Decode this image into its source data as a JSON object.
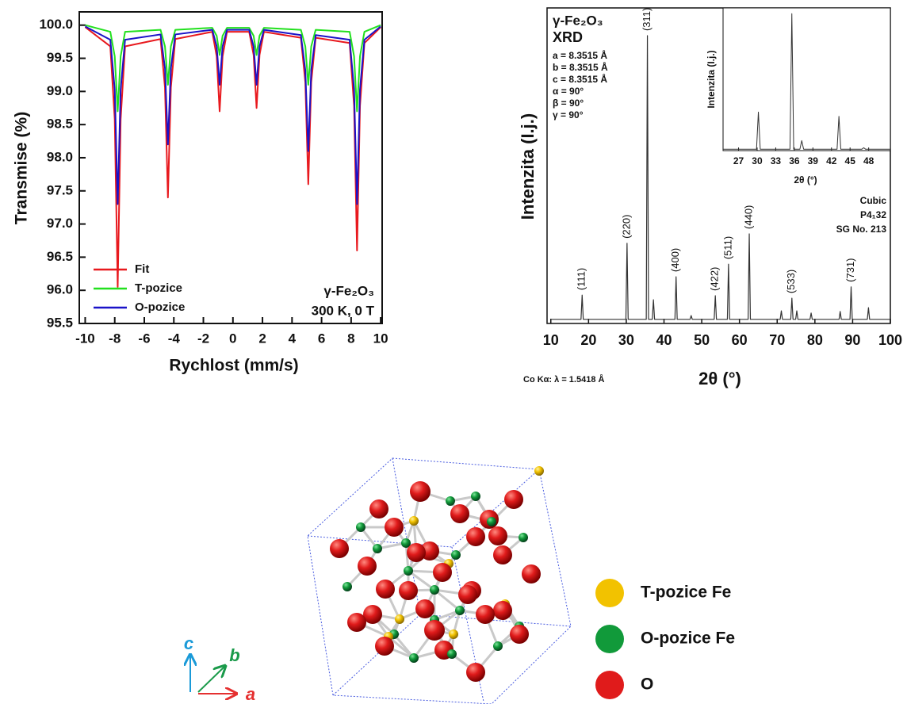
{
  "chart_data": [
    {
      "type": "line",
      "x_label": "Rychlost (mm/s)",
      "y_label": "Transmise (%)",
      "xlim": [
        -10.4,
        10.1
      ],
      "ylim": [
        95.5,
        100.2
      ],
      "xticks": [
        -10,
        -8,
        -6,
        -4,
        -2,
        0,
        2,
        4,
        6,
        8,
        10
      ],
      "yticks": [
        95.5,
        {
          "value": 96,
          "label": "96.0"
        },
        96.5,
        {
          "value": 97,
          "label": "97.0"
        },
        97.5,
        {
          "value": 98,
          "label": "98.0"
        },
        98.5,
        {
          "value": 99,
          "label": "99.0"
        },
        99.5,
        {
          "value": 100,
          "label": "100.0"
        }
      ],
      "x": [
        -10,
        -8.3,
        -8.0,
        -7.8,
        -7.6,
        -7.3,
        -4.9,
        -4.6,
        -4.4,
        -4.2,
        -3.9,
        -1.4,
        -1.1,
        -0.9,
        -0.7,
        -0.4,
        1.1,
        1.4,
        1.6,
        1.8,
        2.1,
        4.6,
        4.9,
        5.1,
        5.3,
        5.6,
        7.9,
        8.2,
        8.4,
        8.6,
        8.9,
        10
      ],
      "series": [
        {
          "name": "Fit",
          "color": "#e8191e",
          "values": [
            99.97,
            99.68,
            98.58,
            96.05,
            98.58,
            99.68,
            99.79,
            99.06,
            97.4,
            99.06,
            99.79,
            99.9,
            99.53,
            98.7,
            99.53,
            99.9,
            99.9,
            99.55,
            98.75,
            99.55,
            99.9,
            99.81,
            99.14,
            97.6,
            99.14,
            99.81,
            99.73,
            98.78,
            96.6,
            98.78,
            99.73,
            99.97
          ]
        },
        {
          "name": "T-pozice",
          "color": "#22e01e",
          "values": [
            100,
            99.9,
            99.53,
            98.7,
            99.53,
            99.9,
            99.93,
            99.68,
            99.1,
            99.68,
            99.93,
            99.96,
            99.84,
            99.55,
            99.84,
            99.96,
            99.96,
            99.84,
            99.55,
            99.84,
            99.96,
            99.93,
            99.68,
            99.1,
            99.68,
            99.93,
            99.9,
            99.53,
            98.7,
            99.53,
            99.9,
            100
          ]
        },
        {
          "name": "O-pozice",
          "color": "#1a12c8",
          "values": [
            99.98,
            99.78,
            99.03,
            97.3,
            99.03,
            99.78,
            99.86,
            99.35,
            98.2,
            99.35,
            99.86,
            99.93,
            99.68,
            99.1,
            99.68,
            99.93,
            99.93,
            99.68,
            99.1,
            99.68,
            99.93,
            99.85,
            99.32,
            98.1,
            99.32,
            99.85,
            99.78,
            99.03,
            97.3,
            99.03,
            99.78,
            99.98
          ]
        }
      ],
      "legend": "lower left",
      "annotations": [
        "γ-Fe₂O₃",
        "300 K, 0 T"
      ]
    },
    {
      "type": "line",
      "x_label": "2θ (°)",
      "y_label": "Intenzita (I.j.)",
      "xlim": [
        9,
        100
      ],
      "ylim": [
        0,
        100
      ],
      "xticks": [
        10,
        20,
        30,
        40,
        50,
        60,
        70,
        80,
        90,
        100
      ],
      "x": [
        10,
        18.0,
        18.3,
        18.6,
        29.9,
        30.2,
        30.5,
        35.3,
        35.6,
        35.9,
        36.9,
        37.2,
        37.5,
        42.9,
        43.2,
        43.5,
        46.9,
        47.2,
        47.5,
        53.3,
        53.6,
        53.9,
        56.8,
        57.1,
        57.4,
        62.3,
        62.6,
        62.9,
        70.8,
        71.1,
        71.4,
        73.6,
        73.9,
        74.2,
        74.9,
        75.2,
        75.5,
        78.7,
        79.0,
        79.3,
        86.4,
        86.7,
        87.0,
        89.3,
        89.6,
        89.9,
        93.9,
        94.2,
        94.5,
        100
      ],
      "series": [
        {
          "color": "#333333",
          "values": [
            1.3,
            1.3,
            9,
            1.3,
            1.3,
            25.4,
            1.3,
            1.3,
            91.2,
            1.3,
            1.3,
            7.5,
            1.3,
            1.3,
            14.8,
            1.3,
            1.3,
            2.5,
            1.3,
            1.3,
            8.8,
            1.3,
            1.3,
            18.8,
            1.3,
            1.3,
            28.4,
            1.3,
            1.3,
            4,
            1.3,
            1.3,
            8,
            1.3,
            1.3,
            4,
            1.3,
            1.3,
            3.3,
            1.3,
            1.3,
            3.8,
            1.3,
            1.3,
            11.6,
            1.3,
            1.3,
            5,
            1.3,
            1.3
          ]
        }
      ],
      "peak_labels": [
        {
          "x": 18.3,
          "label": "(111)"
        },
        {
          "x": 30.2,
          "label": "(220)"
        },
        {
          "x": 35.6,
          "label": "(311)"
        },
        {
          "x": 43.2,
          "label": "(400)"
        },
        {
          "x": 53.6,
          "label": "(422)"
        },
        {
          "x": 57.1,
          "label": "(511)"
        },
        {
          "x": 62.6,
          "label": "(440)"
        },
        {
          "x": 73.9,
          "label": "(533)"
        },
        {
          "x": 89.6,
          "label": "(731)"
        }
      ],
      "title": "γ-Fe₂O₃",
      "info": [
        "XRD",
        "a = 8.3515 Å",
        "b = 8.3515 Å",
        "c = 8.3515 Å",
        "α = 90°",
        "β = 90°",
        "γ = 90°"
      ],
      "symmetry": [
        "Cubic",
        "P4₁32",
        "SG No. 213"
      ],
      "note": "Co Kα: λ = 1.5418 Å",
      "inset": {
        "type": "line",
        "x_label": "2θ (°)",
        "y_label": "Intenzita (I.j.)",
        "xlim": [
          24.5,
          51.5
        ],
        "ylim": [
          0,
          100
        ],
        "xticks": [
          27,
          30,
          33,
          36,
          39,
          42,
          45,
          48
        ],
        "x": [
          24.5,
          29.9,
          30.2,
          30.5,
          35.3,
          35.6,
          35.9,
          36.9,
          37.2,
          37.5,
          42.9,
          43.2,
          43.5,
          46.9,
          47.2,
          47.5,
          51.5
        ],
        "series": [
          {
            "color": "#333333",
            "values": [
              1,
              1,
              27,
              1,
              1,
              96,
              1,
              1,
              7,
              1,
              1,
              24,
              1,
              1,
              2,
              1,
              1
            ]
          }
        ]
      }
    }
  ],
  "structure": {
    "legend": [
      {
        "label": "T-pozice Fe",
        "color": "#f2c200"
      },
      {
        "label": "O-pozice Fe",
        "color": "#119a3a"
      },
      {
        "label": "O",
        "color": "#e01b1b"
      }
    ],
    "axes": [
      "a",
      "b",
      "c"
    ]
  }
}
